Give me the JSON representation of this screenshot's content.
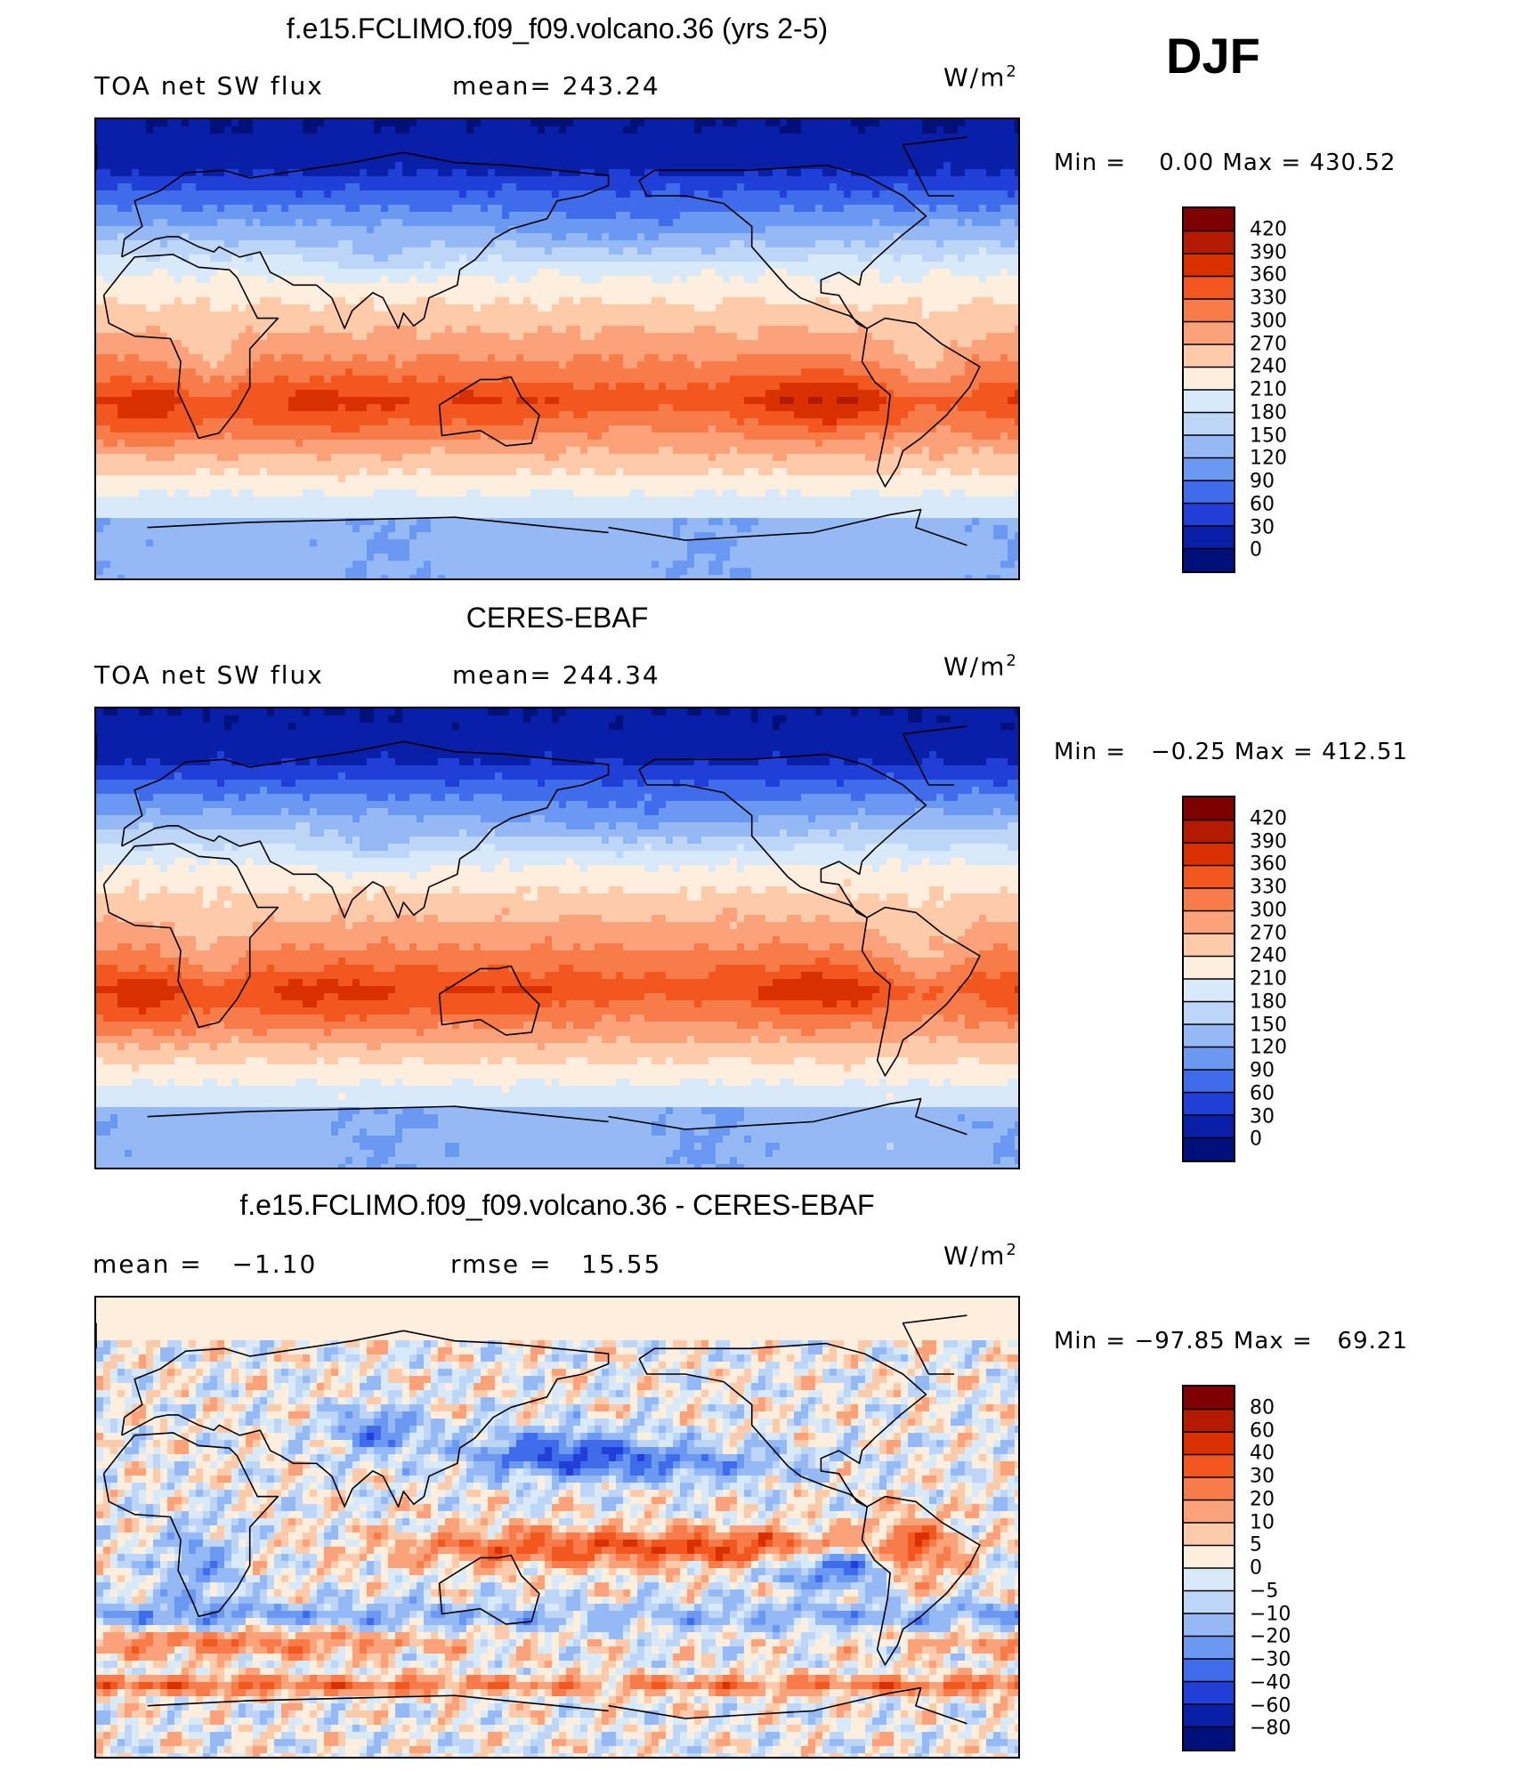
{
  "season_label": "DJF",
  "panels": [
    {
      "title": "f.e15.FCLIMO.f09_f09.volcano.36 (yrs 2-5)",
      "left_text": "TOA net SW flux",
      "mid_text": "mean= 243.24",
      "units_base": "W/m",
      "units_exp": "2",
      "minmax": "Min =    0.00 Max = 430.52",
      "field": "absolute",
      "colorbar": {
        "labels": [
          "420",
          "390",
          "360",
          "330",
          "300",
          "270",
          "240",
          "210",
          "180",
          "150",
          "120",
          "90",
          "60",
          "30",
          "0"
        ],
        "colors": [
          "#7f0000",
          "#b31a00",
          "#d93000",
          "#f2571f",
          "#f77c4a",
          "#fba27a",
          "#fdcaaa",
          "#fdeedd",
          "#d8eafa",
          "#bdd6f8",
          "#94b9f5",
          "#6b98f0",
          "#3f6ceb",
          "#1f3fd6",
          "#0a1fa8",
          "#00107a"
        ]
      },
      "chart_data": {
        "type": "heatmap",
        "title": "f.e15.FCLIMO.f09_f09.volcano.36 (yrs 2-5)",
        "variable": "TOA net SW flux",
        "units": "W/m2",
        "mean": 243.24,
        "min": 0.0,
        "max": 430.52,
        "contour_levels": [
          0,
          30,
          60,
          90,
          120,
          150,
          180,
          210,
          240,
          270,
          300,
          330,
          360,
          390,
          420
        ],
        "zonal_profile": [
          {
            "lat": 90,
            "value": 0
          },
          {
            "lat": 75,
            "value": 15
          },
          {
            "lat": 60,
            "value": 60
          },
          {
            "lat": 45,
            "value": 150
          },
          {
            "lat": 35,
            "value": 215
          },
          {
            "lat": 20,
            "value": 265
          },
          {
            "lat": 5,
            "value": 300
          },
          {
            "lat": -10,
            "value": 340
          },
          {
            "lat": -20,
            "value": 385
          },
          {
            "lat": -35,
            "value": 320
          },
          {
            "lat": -50,
            "value": 260
          },
          {
            "lat": -62,
            "value": 215
          },
          {
            "lat": -75,
            "value": 135
          },
          {
            "lat": -90,
            "value": 130
          }
        ]
      }
    },
    {
      "title": "CERES-EBAF",
      "left_text": "TOA net SW flux",
      "mid_text": "mean= 244.34",
      "units_base": "W/m",
      "units_exp": "2",
      "minmax": "Min =   −0.25 Max = 412.51",
      "field": "absolute",
      "colorbar": {
        "labels": [
          "420",
          "390",
          "360",
          "330",
          "300",
          "270",
          "240",
          "210",
          "180",
          "150",
          "120",
          "90",
          "60",
          "30",
          "0"
        ],
        "colors": [
          "#7f0000",
          "#b31a00",
          "#d93000",
          "#f2571f",
          "#f77c4a",
          "#fba27a",
          "#fdcaaa",
          "#fdeedd",
          "#d8eafa",
          "#bdd6f8",
          "#94b9f5",
          "#6b98f0",
          "#3f6ceb",
          "#1f3fd6",
          "#0a1fa8",
          "#00107a"
        ]
      },
      "chart_data": {
        "type": "heatmap",
        "title": "CERES-EBAF",
        "variable": "TOA net SW flux",
        "units": "W/m2",
        "mean": 244.34,
        "min": -0.25,
        "max": 412.51,
        "contour_levels": [
          0,
          30,
          60,
          90,
          120,
          150,
          180,
          210,
          240,
          270,
          300,
          330,
          360,
          390,
          420
        ],
        "zonal_profile": [
          {
            "lat": 90,
            "value": 0
          },
          {
            "lat": 75,
            "value": 15
          },
          {
            "lat": 60,
            "value": 60
          },
          {
            "lat": 45,
            "value": 145
          },
          {
            "lat": 35,
            "value": 210
          },
          {
            "lat": 20,
            "value": 270
          },
          {
            "lat": 5,
            "value": 305
          },
          {
            "lat": -10,
            "value": 335
          },
          {
            "lat": -20,
            "value": 360
          },
          {
            "lat": -35,
            "value": 320
          },
          {
            "lat": -50,
            "value": 255
          },
          {
            "lat": -62,
            "value": 205
          },
          {
            "lat": -75,
            "value": 140
          },
          {
            "lat": -90,
            "value": 130
          }
        ]
      }
    },
    {
      "title": "f.e15.FCLIMO.f09_f09.volcano.36 - CERES-EBAF",
      "left_text": "mean =   −1.10",
      "mid_text": "rmse =   15.55",
      "units_base": "W/m",
      "units_exp": "2",
      "minmax": "Min = −97.85 Max =   69.21",
      "field": "difference",
      "colorbar": {
        "labels": [
          "80",
          "60",
          "40",
          "30",
          "20",
          "10",
          "5",
          "0",
          "−5",
          "−10",
          "−20",
          "−30",
          "−40",
          "−60",
          "−80"
        ],
        "colors": [
          "#7f0000",
          "#b31a00",
          "#d93000",
          "#f2571f",
          "#f77c4a",
          "#fba27a",
          "#fdcaaa",
          "#fdeedd",
          "#d8eafa",
          "#bdd6f8",
          "#94b9f5",
          "#6b98f0",
          "#3f6ceb",
          "#1f3fd6",
          "#0a1fa8",
          "#00107a"
        ]
      },
      "chart_data": {
        "type": "heatmap",
        "title": "f.e15.FCLIMO.f09_f09.volcano.36 - CERES-EBAF",
        "units": "W/m2",
        "mean": -1.1,
        "rmse": 15.55,
        "min": -97.85,
        "max": 69.21,
        "contour_levels": [
          -80,
          -60,
          -40,
          -30,
          -20,
          -10,
          -5,
          0,
          5,
          10,
          20,
          30,
          40,
          60,
          80
        ]
      }
    }
  ]
}
